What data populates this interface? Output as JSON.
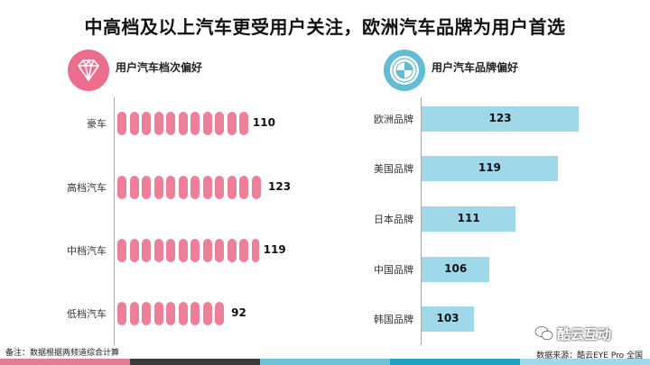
{
  "title": "中高档及以上汽车更受用户关注，欧洲汽车品牌为用户首选",
  "left_panel": {
    "heading": "用户汽车档次偏好",
    "icon": "diamond-icon"
  },
  "right_panel": {
    "heading": "用户汽车品牌偏好",
    "icon": "bmw-logo-icon"
  },
  "footer": {
    "note": "备注：数据根据两频道综合计算",
    "source": "数据来源：酷云EYE Pro 全国",
    "brand": "酷云互动",
    "brand_icon": "wechat-icon"
  },
  "colors": {
    "left_bars": "#ee7f98",
    "right_bars": "#9fd9e9",
    "icon_left": "#ec6d8d",
    "icon_right": "#62bcd6"
  },
  "chart_data": [
    {
      "type": "bar",
      "orientation": "horizontal",
      "title": "用户汽车档次偏好",
      "categories": [
        "豪车",
        "高档汽车",
        "中档汽车",
        "低档汽车"
      ],
      "values": [
        110,
        123,
        119,
        92
      ],
      "xlim": [
        0,
        123
      ]
    },
    {
      "type": "bar",
      "orientation": "horizontal",
      "title": "用户汽车品牌偏好",
      "categories": [
        "欧洲品牌",
        "美国品牌",
        "日本品牌",
        "中国品牌",
        "韩国品牌"
      ],
      "values": [
        123,
        119,
        111,
        106,
        103
      ],
      "xlim": [
        93,
        123
      ]
    }
  ]
}
